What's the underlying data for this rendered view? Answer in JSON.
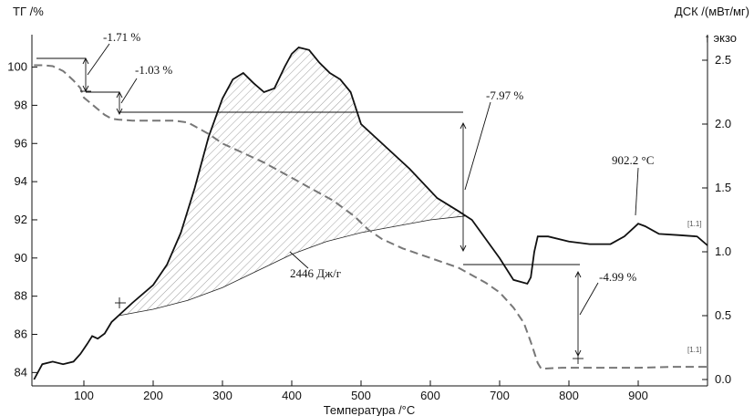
{
  "chart_data": {
    "type": "line",
    "x_axis": {
      "label": "Температура /°C",
      "range": [
        25,
        1000
      ],
      "ticks": [
        100,
        200,
        300,
        400,
        500,
        600,
        700,
        800,
        900
      ]
    },
    "y_left": {
      "label": "ТГ /%",
      "range": [
        83.3,
        101.7
      ],
      "ticks": [
        84,
        86,
        88,
        90,
        92,
        94,
        96,
        98,
        100
      ]
    },
    "y_right": {
      "label": "ДСК /(мВт/мг)",
      "direction_label": "↑ экзо",
      "range": [
        -0.05,
        2.7
      ],
      "ticks": [
        0.0,
        0.5,
        1.0,
        1.5,
        2.0,
        2.5
      ]
    },
    "series": [
      {
        "key": "tg",
        "axis": "left",
        "style": "dashed",
        "color": "#7a7a7a",
        "tag": "[1.1]",
        "points": [
          [
            28,
            100.1
          ],
          [
            40,
            100.1
          ],
          [
            55,
            100.05
          ],
          [
            70,
            99.8
          ],
          [
            85,
            99.3
          ],
          [
            95,
            98.9
          ],
          [
            100,
            98.4
          ],
          [
            110,
            98.1
          ],
          [
            120,
            97.8
          ],
          [
            130,
            97.5
          ],
          [
            140,
            97.3
          ],
          [
            150,
            97.25
          ],
          [
            170,
            97.2
          ],
          [
            200,
            97.2
          ],
          [
            230,
            97.2
          ],
          [
            250,
            97.1
          ],
          [
            260,
            96.9
          ],
          [
            280,
            96.5
          ],
          [
            300,
            96.0
          ],
          [
            330,
            95.5
          ],
          [
            360,
            95.0
          ],
          [
            400,
            94.2
          ],
          [
            430,
            93.6
          ],
          [
            460,
            93.0
          ],
          [
            490,
            92.2
          ],
          [
            510,
            91.5
          ],
          [
            530,
            91.0
          ],
          [
            560,
            90.5
          ],
          [
            600,
            90.0
          ],
          [
            640,
            89.5
          ],
          [
            660,
            89.1
          ],
          [
            680,
            88.7
          ],
          [
            700,
            88.2
          ],
          [
            720,
            87.4
          ],
          [
            735,
            86.6
          ],
          [
            745,
            85.6
          ],
          [
            755,
            84.5
          ],
          [
            760,
            84.2
          ],
          [
            790,
            84.25
          ],
          [
            850,
            84.25
          ],
          [
            900,
            84.25
          ],
          [
            950,
            84.3
          ],
          [
            1000,
            84.3
          ]
        ]
      },
      {
        "key": "dsc",
        "axis": "right",
        "style": "solid",
        "color": "#111111",
        "tag": "[1.1]",
        "points": [
          [
            28,
            0.0
          ],
          [
            40,
            0.12
          ],
          [
            55,
            0.14
          ],
          [
            70,
            0.12
          ],
          [
            85,
            0.14
          ],
          [
            95,
            0.2
          ],
          [
            105,
            0.28
          ],
          [
            112,
            0.34
          ],
          [
            120,
            0.32
          ],
          [
            130,
            0.36
          ],
          [
            140,
            0.45
          ],
          [
            150,
            0.5
          ],
          [
            170,
            0.6
          ],
          [
            200,
            0.74
          ],
          [
            220,
            0.9
          ],
          [
            240,
            1.15
          ],
          [
            260,
            1.5
          ],
          [
            280,
            1.9
          ],
          [
            300,
            2.2
          ],
          [
            315,
            2.35
          ],
          [
            330,
            2.4
          ],
          [
            345,
            2.32
          ],
          [
            360,
            2.25
          ],
          [
            375,
            2.28
          ],
          [
            390,
            2.45
          ],
          [
            400,
            2.55
          ],
          [
            410,
            2.6
          ],
          [
            425,
            2.58
          ],
          [
            440,
            2.48
          ],
          [
            455,
            2.4
          ],
          [
            470,
            2.35
          ],
          [
            485,
            2.25
          ],
          [
            500,
            2.0
          ],
          [
            530,
            1.85
          ],
          [
            570,
            1.65
          ],
          [
            610,
            1.42
          ],
          [
            640,
            1.32
          ],
          [
            660,
            1.25
          ],
          [
            680,
            1.1
          ],
          [
            700,
            0.95
          ],
          [
            720,
            0.78
          ],
          [
            740,
            0.75
          ],
          [
            745,
            0.8
          ],
          [
            750,
            1.0
          ],
          [
            755,
            1.12
          ],
          [
            770,
            1.12
          ],
          [
            800,
            1.08
          ],
          [
            830,
            1.06
          ],
          [
            860,
            1.06
          ],
          [
            880,
            1.12
          ],
          [
            900,
            1.22
          ],
          [
            910,
            1.2
          ],
          [
            930,
            1.14
          ],
          [
            960,
            1.13
          ],
          [
            985,
            1.12
          ],
          [
            1000,
            1.05
          ]
        ]
      },
      {
        "key": "baseline",
        "axis": "right",
        "style": "thin",
        "color": "#222222",
        "points": [
          [
            150,
            0.5
          ],
          [
            200,
            0.55
          ],
          [
            250,
            0.62
          ],
          [
            300,
            0.72
          ],
          [
            350,
            0.85
          ],
          [
            400,
            0.98
          ],
          [
            450,
            1.08
          ],
          [
            500,
            1.15
          ],
          [
            550,
            1.2
          ],
          [
            600,
            1.25
          ],
          [
            650,
            1.28
          ]
        ]
      }
    ],
    "hatched_area": {
      "x_start": 150,
      "x_end": 650
    },
    "annotations": [
      {
        "key": "a1",
        "text": "-1.71 %"
      },
      {
        "key": "a2",
        "text": "-1.03 %"
      },
      {
        "key": "a3",
        "text": "-7.97 %"
      },
      {
        "key": "a4",
        "text": "-4.99 %"
      },
      {
        "key": "a5",
        "text": "902.2 °C"
      },
      {
        "key": "a6",
        "text": "2446 Дж/г"
      }
    ]
  }
}
